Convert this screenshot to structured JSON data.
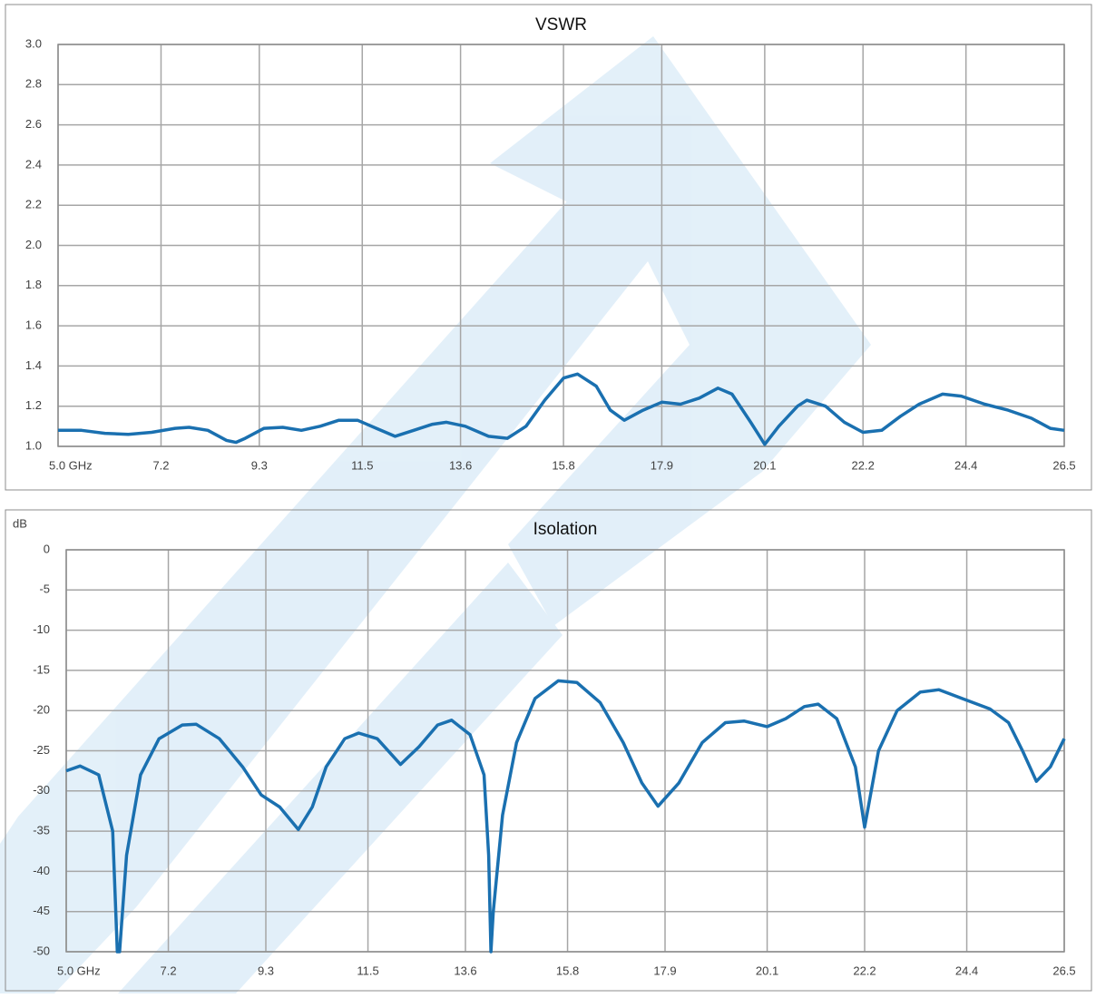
{
  "chart_data": [
    {
      "type": "line",
      "title": "VSWR",
      "x": [
        5.0,
        5.5,
        6.0,
        6.5,
        7.0,
        7.5,
        7.8,
        8.2,
        8.6,
        8.8,
        9.0,
        9.4,
        9.8,
        10.2,
        10.6,
        11.0,
        11.4,
        11.8,
        12.2,
        12.6,
        13.0,
        13.3,
        13.7,
        14.2,
        14.6,
        15.0,
        15.4,
        15.8,
        16.1,
        16.5,
        16.8,
        17.1,
        17.5,
        17.9,
        18.3,
        18.7,
        19.1,
        19.4,
        19.8,
        20.1,
        20.4,
        20.8,
        21.0,
        21.4,
        21.8,
        22.2,
        22.6,
        23.0,
        23.4,
        23.9,
        24.3,
        24.8,
        25.3,
        25.8,
        26.2,
        26.5
      ],
      "series": [
        {
          "color": "#1a70b0",
          "values": [
            1.08,
            1.08,
            1.065,
            1.06,
            1.07,
            1.09,
            1.095,
            1.08,
            1.03,
            1.02,
            1.04,
            1.09,
            1.095,
            1.08,
            1.1,
            1.13,
            1.13,
            1.09,
            1.05,
            1.08,
            1.11,
            1.12,
            1.1,
            1.05,
            1.04,
            1.1,
            1.23,
            1.34,
            1.36,
            1.3,
            1.18,
            1.13,
            1.18,
            1.22,
            1.21,
            1.24,
            1.29,
            1.26,
            1.12,
            1.01,
            1.1,
            1.2,
            1.23,
            1.2,
            1.12,
            1.07,
            1.08,
            1.15,
            1.21,
            1.26,
            1.25,
            1.21,
            1.18,
            1.14,
            1.09,
            1.08
          ]
        }
      ],
      "xlim": [
        5.0,
        26.5
      ],
      "xticks": [
        {
          "value": 5.0,
          "label": "5.0  GHz"
        },
        7.2,
        9.3,
        11.5,
        13.6,
        15.8,
        17.9,
        20.1,
        22.2,
        24.4,
        26.5
      ],
      "ylim": [
        1.0,
        3.0
      ],
      "yticks": [
        {
          "value": 1.0,
          "label": "1.0"
        },
        1.2,
        1.4,
        1.6,
        1.8,
        {
          "value": 2.0,
          "label": "2.0"
        },
        2.2,
        2.4,
        2.6,
        2.8,
        {
          "value": 3.0,
          "label": "3.0"
        }
      ],
      "grid": true
    },
    {
      "type": "line",
      "title": "Isolation",
      "y_label": "dB",
      "x": [
        5.0,
        5.3,
        5.7,
        6.0,
        6.1,
        6.15,
        6.3,
        6.6,
        7.0,
        7.5,
        7.8,
        8.3,
        8.8,
        9.2,
        9.6,
        10.0,
        10.3,
        10.6,
        11.0,
        11.3,
        11.7,
        12.2,
        12.6,
        13.0,
        13.3,
        13.7,
        14.0,
        14.1,
        14.15,
        14.2,
        14.4,
        14.7,
        15.1,
        15.6,
        16.0,
        16.5,
        17.0,
        17.4,
        17.75,
        18.2,
        18.7,
        19.2,
        19.6,
        20.1,
        20.5,
        20.9,
        21.2,
        21.6,
        22.0,
        22.2,
        22.5,
        22.9,
        23.4,
        23.8,
        24.3,
        24.9,
        25.3,
        25.6,
        25.9,
        26.2,
        26.5
      ],
      "series": [
        {
          "color": "#1a70b0",
          "values": [
            -27.5,
            -26.9,
            -28,
            -35,
            -50,
            -50,
            -38,
            -28,
            -23.5,
            -21.8,
            -21.7,
            -23.5,
            -27,
            -30.5,
            -32,
            -34.8,
            -32,
            -27,
            -23.5,
            -22.8,
            -23.5,
            -26.7,
            -24.5,
            -21.8,
            -21.2,
            -23,
            -28,
            -38,
            -50,
            -45,
            -33,
            -24,
            -18.5,
            -16.3,
            -16.5,
            -19,
            -24,
            -29,
            -31.9,
            -29,
            -24,
            -21.5,
            -21.3,
            -22,
            -21,
            -19.5,
            -19.2,
            -21,
            -27,
            -34.5,
            -25,
            -20,
            -17.7,
            -17.4,
            -18.5,
            -19.8,
            -21.5,
            -25,
            -28.8,
            -27,
            -23.5
          ]
        }
      ],
      "xlim": [
        5.0,
        26.5
      ],
      "xticks": [
        {
          "value": 5.0,
          "label": "5.0 GHz"
        },
        7.2,
        9.3,
        11.5,
        13.6,
        15.8,
        17.9,
        20.1,
        22.2,
        24.4,
        26.5
      ],
      "ylim": [
        -50,
        0
      ],
      "yticks": [
        -50,
        -45,
        -40,
        -35,
        -30,
        -25,
        -20,
        -15,
        -10,
        -5,
        0
      ],
      "grid": true
    }
  ]
}
